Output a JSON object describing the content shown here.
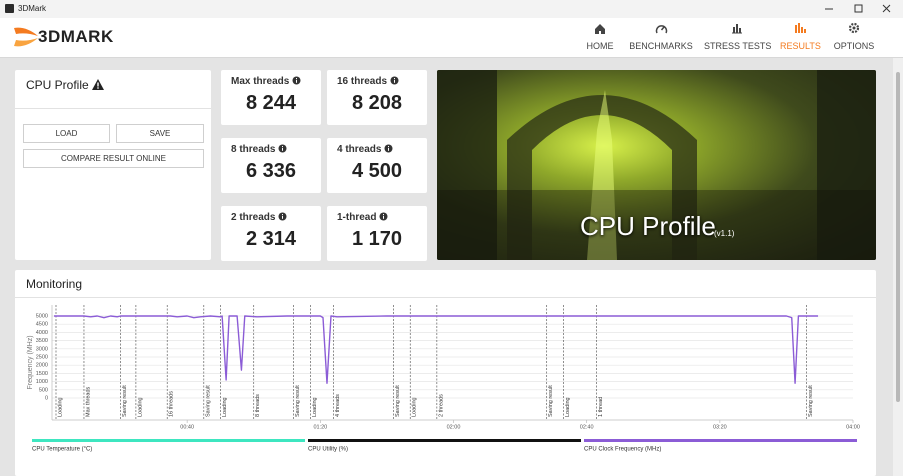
{
  "window": {
    "title": "3DMark"
  },
  "header": {
    "logo": "3DMARK",
    "nav": [
      "HOME",
      "BENCHMARKS",
      "STRESS TESTS",
      "RESULTS",
      "OPTIONS"
    ],
    "active": 3
  },
  "profile": {
    "title": "CPU Profile",
    "buttons": [
      "LOAD",
      "SAVE",
      "COMPARE RESULT ONLINE"
    ]
  },
  "scores": [
    {
      "label": "Max threads",
      "value": "8 244"
    },
    {
      "label": "16 threads",
      "value": "8 208"
    },
    {
      "label": "8 threads",
      "value": "6 336"
    },
    {
      "label": "4 threads",
      "value": "4 500"
    },
    {
      "label": "2 threads",
      "value": "2 314"
    },
    {
      "label": "1-thread",
      "value": "1 170"
    }
  ],
  "banner": {
    "title": "CPU Profile",
    "version": "(v1.1)"
  },
  "monitoring": {
    "title": "Monitoring"
  },
  "chart_data": {
    "type": "line",
    "y_label": "Frequency (MHz)",
    "xlim": [
      0,
      240
    ],
    "xticks": [
      {
        "value": 40,
        "label": "00:40"
      },
      {
        "value": 80,
        "label": "01:20"
      },
      {
        "value": 120,
        "label": "02:00"
      },
      {
        "value": 160,
        "label": "02:40"
      },
      {
        "value": 200,
        "label": "03:20"
      },
      {
        "value": 240,
        "label": "04:00"
      }
    ],
    "ylim": [
      0,
      5000
    ],
    "yticks": [
      0,
      500,
      1000,
      1500,
      2000,
      2500,
      3000,
      3500,
      4000,
      4500,
      5000
    ],
    "grid": true,
    "x": [
      0,
      9,
      11,
      13,
      15,
      17,
      19,
      20,
      35,
      37,
      40,
      42,
      44,
      47,
      50,
      50.5,
      51.7,
      52.6,
      55,
      56.3,
      57.3,
      61,
      70,
      80,
      80.8,
      82,
      83.2,
      85,
      100,
      140,
      180,
      220,
      221.6,
      222.6,
      223.6,
      229.5
    ],
    "series": [
      {
        "color": "#8b5cd6",
        "values": [
          5000,
          5000,
          4950,
          5000,
          4900,
          5000,
          4950,
          5000,
          5000,
          4950,
          5000,
          4900,
          4950,
          5000,
          4950,
          5000,
          1100,
          5000,
          5000,
          1700,
          5000,
          4950,
          5000,
          5000,
          4900,
          900,
          5000,
          4950,
          5000,
          5000,
          5000,
          5000,
          4900,
          900,
          5000,
          5000
        ]
      }
    ],
    "markers": [
      {
        "x": 0.6,
        "label": "Loading"
      },
      {
        "x": 9,
        "label": "Max threads"
      },
      {
        "x": 20,
        "label": "Saving result"
      },
      {
        "x": 24.6,
        "label": "Loading"
      },
      {
        "x": 34,
        "label": "16 threads"
      },
      {
        "x": 45,
        "label": "Saving result"
      },
      {
        "x": 50,
        "label": "Loading"
      },
      {
        "x": 60,
        "label": "8 threads"
      },
      {
        "x": 72,
        "label": "Saving result"
      },
      {
        "x": 77,
        "label": "Loading"
      },
      {
        "x": 84,
        "label": "4 threads"
      },
      {
        "x": 102,
        "label": "Saving result"
      },
      {
        "x": 107,
        "label": "Loading"
      },
      {
        "x": 115,
        "label": "2 threads"
      },
      {
        "x": 148,
        "label": "Saving result"
      },
      {
        "x": 153,
        "label": "Loading"
      },
      {
        "x": 163,
        "label": "1 thread"
      },
      {
        "x": 226,
        "label": "Saving result"
      }
    ],
    "legend": [
      {
        "label": "CPU Temperature (°C)",
        "color": "#3ee6c0"
      },
      {
        "label": "CPU Utility (%)",
        "color": "#111111"
      },
      {
        "label": "CPU Clock Frequency (MHz)",
        "color": "#8b5cd6"
      }
    ]
  }
}
